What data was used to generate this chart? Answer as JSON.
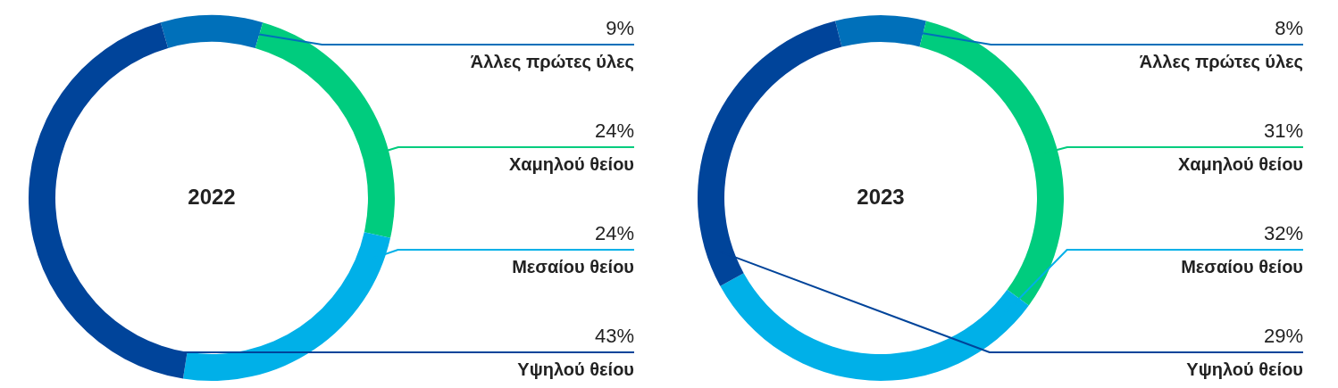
{
  "chart_data": [
    {
      "type": "donut",
      "title": "2022",
      "categories": [
        "Άλλες πρώτες ύλες",
        "Χαμηλού θείου",
        "Μεσαίου θείου",
        "Υψηλού θείου"
      ],
      "values": [
        9,
        24,
        24,
        43
      ],
      "value_labels": [
        "9%",
        "24%",
        "24%",
        "43%"
      ],
      "colors": [
        "#0070ba",
        "#00cc7e",
        "#00b0e8",
        "#00449a"
      ],
      "legend": false
    },
    {
      "type": "donut",
      "title": "2023",
      "categories": [
        "Άλλες πρώτες ύλες",
        "Χαμηλού θείου",
        "Μεσαίου θείου",
        "Υψηλού θείου"
      ],
      "values": [
        8,
        31,
        32,
        29
      ],
      "value_labels": [
        "8%",
        "31%",
        "32%",
        "29%"
      ],
      "colors": [
        "#0070ba",
        "#00cc7e",
        "#00b0e8",
        "#00449a"
      ],
      "legend": false
    }
  ]
}
